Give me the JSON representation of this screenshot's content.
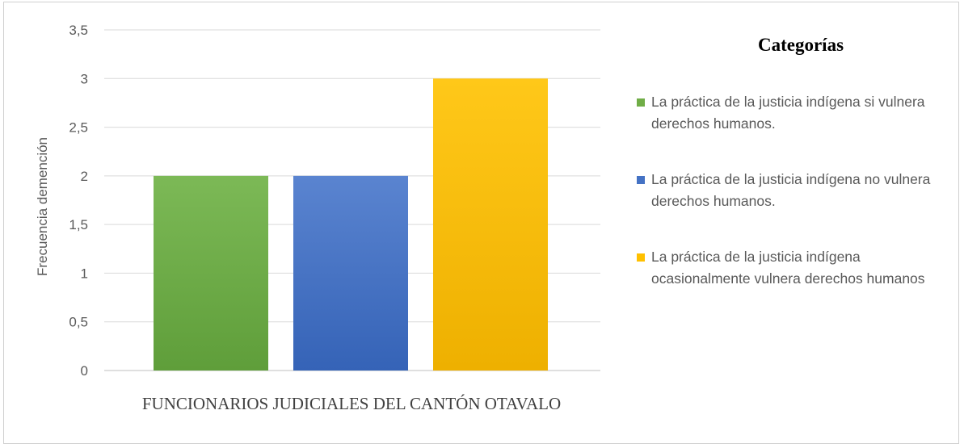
{
  "chart_data": {
    "type": "bar",
    "title": "",
    "xlabel": "FUNCIONARIOS JUDICIALES DEL CANTÓN OTAVALO",
    "ylabel": "Frecuencia demención",
    "ylim": [
      0,
      3.5
    ],
    "yticks": [
      "0",
      "0,5",
      "1",
      "1,5",
      "2",
      "2,5",
      "3",
      "3,5"
    ],
    "grid": true,
    "legend_title": "Categorías",
    "legend_position": "right",
    "series": [
      {
        "name": "La práctica de la justicia indígena si vulnera derechos humanos.",
        "values": [
          2
        ],
        "color": "#70ad47"
      },
      {
        "name": "La práctica de la justicia indígena no vulnera derechos humanos.",
        "values": [
          2
        ],
        "color": "#4472c4"
      },
      {
        "name": "La práctica de la justicia indígena ocasionalmente vulnera derechos humanos",
        "values": [
          3
        ],
        "color": "#ffc000"
      }
    ]
  }
}
